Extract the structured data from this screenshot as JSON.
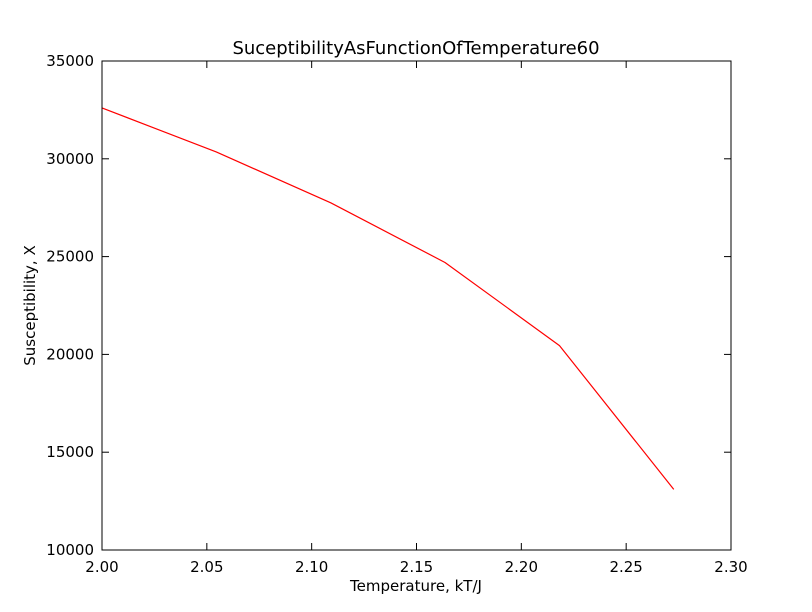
{
  "chart_data": {
    "type": "line",
    "title": "SuceptibilityAsFunctionOfTemperature60",
    "xlabel": "Temperature, kT/J",
    "ylabel": "Susceptibility, X",
    "xlim": [
      2.0,
      2.3
    ],
    "ylim": [
      10000,
      35000
    ],
    "xticks": [
      "2.00",
      "2.05",
      "2.10",
      "2.15",
      "2.20",
      "2.25",
      "2.30"
    ],
    "yticks": [
      "10000",
      "15000",
      "20000",
      "25000",
      "30000",
      "35000"
    ],
    "grid": false,
    "legend": "none",
    "series": [
      {
        "color": "#ff0000",
        "x": [
          2.0,
          2.0545,
          2.1091,
          2.1636,
          2.2182,
          2.2727
        ],
        "y": [
          32600,
          30350,
          27750,
          24700,
          20450,
          13100
        ]
      }
    ]
  }
}
